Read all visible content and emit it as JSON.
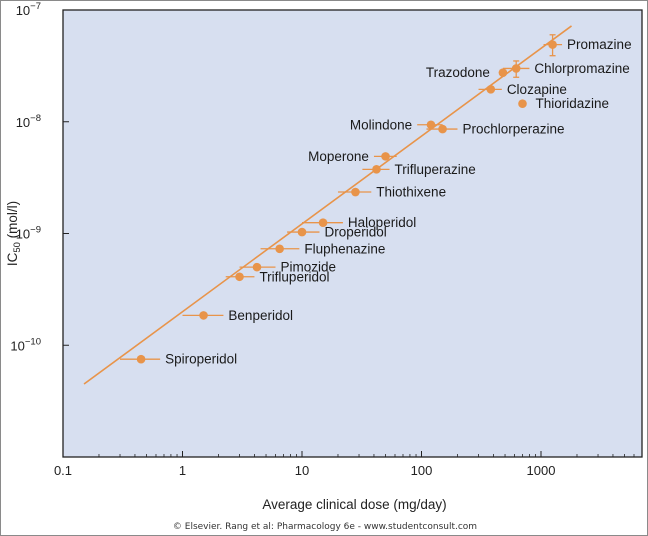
{
  "chart_data": {
    "type": "scatter",
    "title": "",
    "xlabel": "Average clinical dose (mg/day)",
    "ylabel": "IC",
    "ylabel_sub": "50",
    "ylabel_unit": " (mol/l)",
    "xscale": "log",
    "yscale": "log",
    "xlim": [
      0.1,
      7000
    ],
    "ylim": [
      1e-11,
      1e-07
    ],
    "x_ticks": [
      {
        "value": 0.1,
        "label": "0.1"
      },
      {
        "value": 1,
        "label": "1"
      },
      {
        "value": 10,
        "label": "10"
      },
      {
        "value": 100,
        "label": "100"
      },
      {
        "value": 1000,
        "label": "1000"
      }
    ],
    "y_ticks": [
      {
        "value": 1e-10,
        "base": "10",
        "exp": "−10"
      },
      {
        "value": 1e-09,
        "base": "10",
        "exp": "−9"
      },
      {
        "value": 1e-08,
        "base": "10",
        "exp": "−8"
      },
      {
        "value": 1e-07,
        "base": "10",
        "exp": "−7"
      }
    ],
    "grid": false,
    "regression_line": {
      "x": [
        0.15,
        1800
      ],
      "y": [
        4.5e-11,
        7.2e-08
      ]
    },
    "points": [
      {
        "name": "Promazine",
        "x": 1250,
        "y": 4.9e-08,
        "xerr": [
          1050,
          1500
        ],
        "yerr": [
          3.9e-08,
          6e-08
        ],
        "label_side": "right"
      },
      {
        "name": "Chlorpromazine",
        "x": 620,
        "y": 3e-08,
        "xerr": [
          480,
          800
        ],
        "yerr": [
          2.5e-08,
          3.5e-08
        ],
        "label_side": "right"
      },
      {
        "name": "Trazodone",
        "x": 480,
        "y": 2.75e-08,
        "xerr": null,
        "yerr": null,
        "label_side": "left"
      },
      {
        "name": "Clozapine",
        "x": 380,
        "y": 1.95e-08,
        "xerr": [
          300,
          470
        ],
        "yerr": null,
        "label_side": "right"
      },
      {
        "name": "Thioridazine",
        "x": 700,
        "y": 1.45e-08,
        "xerr": null,
        "yerr": null,
        "label_side": "right"
      },
      {
        "name": "Molindone",
        "x": 120,
        "y": 9.4e-09,
        "xerr": [
          92,
          150
        ],
        "yerr": null,
        "label_side": "left"
      },
      {
        "name": "Prochlorperazine",
        "x": 150,
        "y": 8.6e-09,
        "xerr": [
          110,
          200
        ],
        "yerr": null,
        "label_side": "right"
      },
      {
        "name": "Moperone",
        "x": 50,
        "y": 4.9e-09,
        "xerr": [
          40,
          62
        ],
        "yerr": null,
        "label_side": "left"
      },
      {
        "name": "Trifluperazine",
        "x": 42,
        "y": 3.75e-09,
        "xerr": [
          32,
          54
        ],
        "yerr": null,
        "label_side": "right"
      },
      {
        "name": "Thiothixene",
        "x": 28,
        "y": 2.35e-09,
        "xerr": [
          20,
          38
        ],
        "yerr": null,
        "label_side": "right"
      },
      {
        "name": "Haloperidol",
        "x": 15,
        "y": 1.25e-09,
        "xerr": [
          10,
          22
        ],
        "yerr": null,
        "label_side": "right"
      },
      {
        "name": "Droperidol",
        "x": 10,
        "y": 1.03e-09,
        "xerr": [
          7.5,
          14
        ],
        "yerr": null,
        "label_side": "right"
      },
      {
        "name": "Fluphenazine",
        "x": 6.5,
        "y": 7.3e-10,
        "xerr": [
          4.5,
          9.5
        ],
        "yerr": null,
        "label_side": "right"
      },
      {
        "name": "Pimozide",
        "x": 4.2,
        "y": 5e-10,
        "xerr": [
          3.0,
          6.0
        ],
        "yerr": null,
        "label_side": "right"
      },
      {
        "name": "Trifluperidol",
        "x": 3.0,
        "y": 4.1e-10,
        "xerr": [
          2.3,
          4.0
        ],
        "yerr": null,
        "label_side": "right"
      },
      {
        "name": "Benperidol",
        "x": 1.5,
        "y": 1.85e-10,
        "xerr": [
          1.0,
          2.2
        ],
        "yerr": null,
        "label_side": "right"
      },
      {
        "name": "Spiroperidol",
        "x": 0.45,
        "y": 7.5e-11,
        "xerr": [
          0.3,
          0.65
        ],
        "yerr": null,
        "label_side": "right"
      }
    ],
    "credit": "© Elsevier. Rang et al: Pharmacology 6e - www.studentconsult.com",
    "colors": {
      "plot_background": "#d7dff0",
      "plot_border": "#222222",
      "marker": "#e8944a",
      "line": "#e8944a",
      "text": "#1a1a1a"
    }
  }
}
